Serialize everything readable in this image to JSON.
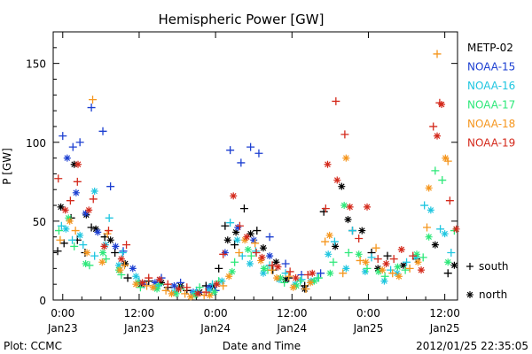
{
  "chart_data": {
    "type": "scatter",
    "title": "Hemispheric Power [GW]",
    "xlabel": "Date and Time",
    "ylabel": "P [GW]",
    "xlim_hours": [
      -1.5,
      62
    ],
    "ylim": [
      0,
      170
    ],
    "yticks": [
      0,
      50,
      100,
      150
    ],
    "xticks": [
      {
        "t": 0,
        "label_time": "0:00",
        "label_date": "Jan23"
      },
      {
        "t": 12,
        "label_time": "12:00",
        "label_date": "Jan23"
      },
      {
        "t": 24,
        "label_time": "0:00",
        "label_date": "Jan24"
      },
      {
        "t": 36,
        "label_time": "12:00",
        "label_date": "Jan24"
      },
      {
        "t": 48,
        "label_time": "0:00",
        "label_date": "Jan25"
      },
      {
        "t": 60,
        "label_time": "12:00",
        "label_date": "Jan25"
      }
    ],
    "grid": false,
    "legend_position": "right",
    "marker_legend": [
      {
        "symbol": "+",
        "label": "south"
      },
      {
        "symbol": "*",
        "label": "north"
      }
    ],
    "series": [
      {
        "name": "METP-02",
        "color": "#000000",
        "south": [
          [
            -0.8,
            31
          ],
          [
            0.2,
            36
          ],
          [
            1.3,
            52
          ],
          [
            2.3,
            38
          ],
          [
            3.5,
            30
          ],
          [
            4.5,
            46
          ],
          [
            6.6,
            40
          ],
          [
            8.2,
            30
          ],
          [
            10.2,
            14
          ],
          [
            13.5,
            12
          ],
          [
            16.5,
            8
          ],
          [
            19.5,
            6
          ],
          [
            22.5,
            9
          ],
          [
            24.5,
            20
          ],
          [
            25.5,
            47
          ],
          [
            27,
            35
          ],
          [
            28.5,
            58
          ],
          [
            30.5,
            44
          ],
          [
            33,
            19
          ],
          [
            35.5,
            14
          ],
          [
            38,
            9
          ],
          [
            41,
            56
          ],
          [
            45.5,
            44
          ],
          [
            48.5,
            30
          ],
          [
            51,
            28
          ],
          [
            55.5,
            26
          ],
          [
            60.5,
            17
          ]
        ],
        "north": [
          [
            -0.3,
            59
          ],
          [
            1.8,
            86
          ],
          [
            3.7,
            54
          ],
          [
            5.2,
            45
          ],
          [
            7.5,
            38
          ],
          [
            9.8,
            23
          ],
          [
            12.3,
            10
          ],
          [
            15.5,
            11
          ],
          [
            18.5,
            9
          ],
          [
            21.5,
            5
          ],
          [
            23.5,
            9
          ],
          [
            25.9,
            38
          ],
          [
            27.2,
            43
          ],
          [
            29.5,
            42
          ],
          [
            31.5,
            33
          ],
          [
            33.5,
            24
          ],
          [
            35,
            13
          ],
          [
            38,
            7
          ],
          [
            42.8,
            34
          ],
          [
            43.8,
            72
          ],
          [
            44.8,
            51
          ],
          [
            47,
            44
          ],
          [
            49.5,
            20
          ],
          [
            53.5,
            22
          ],
          [
            58.5,
            35
          ],
          [
            61.5,
            22
          ]
        ]
      },
      {
        "name": "NOAA-15",
        "color": "#1c3fd1",
        "south": [
          [
            0,
            104
          ],
          [
            1.6,
            97
          ],
          [
            2.7,
            100
          ],
          [
            4.5,
            122
          ],
          [
            6.3,
            107
          ],
          [
            7.5,
            72
          ],
          [
            9.5,
            31
          ],
          [
            12.8,
            10
          ],
          [
            15.5,
            14
          ],
          [
            18.5,
            11
          ],
          [
            21.5,
            5
          ],
          [
            24,
            6
          ],
          [
            26.3,
            95
          ],
          [
            28,
            87
          ],
          [
            29.5,
            97
          ],
          [
            30.8,
            93
          ],
          [
            32.5,
            40
          ],
          [
            35,
            23
          ],
          [
            37.5,
            16
          ],
          [
            40.5,
            17
          ]
        ],
        "north": [
          [
            0.7,
            90
          ],
          [
            2.1,
            68
          ],
          [
            3.6,
            55
          ],
          [
            5.5,
            43
          ],
          [
            8.3,
            34
          ],
          [
            11,
            20
          ],
          [
            14.5,
            11
          ],
          [
            17.5,
            9
          ],
          [
            20.5,
            5
          ],
          [
            23,
            8
          ],
          [
            25.5,
            30
          ],
          [
            27.5,
            46
          ],
          [
            30,
            38
          ],
          [
            32.5,
            28
          ]
        ]
      },
      {
        "name": "NOAA-16",
        "color": "#1fc6e0",
        "south": [
          [
            -0.2,
            47
          ],
          [
            1.5,
            38
          ],
          [
            3.2,
            35
          ],
          [
            5,
            28
          ],
          [
            7.3,
            52
          ],
          [
            9.4,
            30
          ],
          [
            12,
            12
          ],
          [
            15,
            9
          ],
          [
            18,
            7
          ],
          [
            21,
            6
          ],
          [
            23.5,
            10
          ],
          [
            26.3,
            49
          ],
          [
            28.2,
            28
          ],
          [
            30.3,
            31
          ],
          [
            32.5,
            22
          ],
          [
            35,
            17
          ],
          [
            37.5,
            13
          ],
          [
            40,
            14
          ],
          [
            42.7,
            37
          ],
          [
            45.5,
            44
          ],
          [
            48.5,
            27
          ],
          [
            51.5,
            19
          ],
          [
            54,
            24
          ],
          [
            56.8,
            60
          ],
          [
            59.3,
            45
          ],
          [
            61,
            30
          ]
        ],
        "north": [
          [
            0.5,
            45
          ],
          [
            2.7,
            41
          ],
          [
            5,
            69
          ],
          [
            6.7,
            35
          ],
          [
            8.8,
            22
          ],
          [
            11.5,
            15
          ],
          [
            14.5,
            8
          ],
          [
            17.5,
            5
          ],
          [
            20.5,
            4
          ],
          [
            23,
            6
          ],
          [
            25,
            12
          ],
          [
            27.4,
            38
          ],
          [
            29.4,
            23
          ],
          [
            31.5,
            17
          ],
          [
            34,
            13
          ],
          [
            36.5,
            10
          ],
          [
            39,
            12
          ],
          [
            41.7,
            29
          ],
          [
            44.5,
            20
          ],
          [
            47.5,
            18
          ],
          [
            50.5,
            12
          ],
          [
            52.5,
            17
          ],
          [
            55.5,
            27
          ],
          [
            57.8,
            57
          ],
          [
            60,
            42
          ],
          [
            62.5,
            22
          ],
          [
            64.5,
            14
          ],
          [
            66.5,
            12
          ],
          [
            68.5,
            8
          ]
        ]
      },
      {
        "name": "NOAA-17",
        "color": "#2ee87a",
        "south": [
          [
            -0.6,
            44
          ],
          [
            1.8,
            34
          ],
          [
            4.2,
            22
          ],
          [
            6.8,
            26
          ],
          [
            9.2,
            16
          ],
          [
            12.2,
            8
          ],
          [
            15.2,
            10
          ],
          [
            18.5,
            7
          ],
          [
            21.5,
            8
          ],
          [
            24.5,
            12
          ],
          [
            27,
            24
          ],
          [
            29.6,
            28
          ],
          [
            32.2,
            19
          ],
          [
            34.8,
            11
          ],
          [
            37.3,
            12
          ],
          [
            40.2,
            14
          ],
          [
            42.5,
            24
          ],
          [
            44.9,
            30
          ],
          [
            47.8,
            20
          ],
          [
            50.6,
            15
          ],
          [
            53.8,
            19
          ],
          [
            56.6,
            27
          ],
          [
            58.5,
            82
          ],
          [
            59.6,
            76
          ],
          [
            61.5,
            44
          ],
          [
            64,
            26
          ],
          [
            66.8,
            18
          ],
          [
            69,
            13
          ]
        ],
        "north": [
          [
            0.9,
            52
          ],
          [
            3.6,
            23
          ],
          [
            6.3,
            30
          ],
          [
            8.8,
            19
          ],
          [
            11.8,
            11
          ],
          [
            14.8,
            7
          ],
          [
            17.8,
            4
          ],
          [
            20.8,
            3
          ],
          [
            23.8,
            5
          ],
          [
            26.6,
            18
          ],
          [
            29.1,
            32
          ],
          [
            31.6,
            20
          ],
          [
            34.2,
            14
          ],
          [
            36.7,
            9
          ],
          [
            39.5,
            12
          ],
          [
            42,
            17
          ],
          [
            44.2,
            60
          ],
          [
            46.5,
            29
          ],
          [
            49.6,
            18
          ],
          [
            52.6,
            21
          ],
          [
            55.6,
            29
          ],
          [
            57.5,
            40
          ],
          [
            60.5,
            24
          ],
          [
            63.5,
            16
          ],
          [
            66,
            13
          ],
          [
            68.5,
            9
          ]
        ]
      },
      {
        "name": "NOAA-18",
        "color": "#f5961e",
        "south": [
          [
            -0.4,
            38
          ],
          [
            2,
            44
          ],
          [
            4.7,
            127
          ],
          [
            7,
            42
          ],
          [
            9.7,
            22
          ],
          [
            13.2,
            9
          ],
          [
            16.2,
            6
          ],
          [
            19.2,
            4
          ],
          [
            22.2,
            3
          ],
          [
            25.2,
            9
          ],
          [
            27.7,
            30
          ],
          [
            30.2,
            36
          ],
          [
            32.8,
            19
          ],
          [
            35.5,
            15
          ],
          [
            38.2,
            7
          ],
          [
            41.2,
            37
          ],
          [
            44,
            17
          ],
          [
            46.7,
            25
          ],
          [
            49.2,
            33
          ],
          [
            51.8,
            17
          ],
          [
            54.5,
            20
          ],
          [
            57.2,
            46
          ],
          [
            58.8,
            156
          ],
          [
            60.5,
            88
          ],
          [
            62.2,
            26
          ],
          [
            65.3,
            16
          ],
          [
            68,
            13
          ]
        ],
        "north": [
          [
            1.1,
            50
          ],
          [
            3.8,
            30
          ],
          [
            6.2,
            24
          ],
          [
            9,
            19
          ],
          [
            11.5,
            10
          ],
          [
            14.2,
            8
          ],
          [
            17.1,
            4
          ],
          [
            20.1,
            2
          ],
          [
            23.1,
            3
          ],
          [
            26.1,
            15
          ],
          [
            28.6,
            38
          ],
          [
            31.1,
            25
          ],
          [
            33.6,
            14
          ],
          [
            36.2,
            8
          ],
          [
            38.9,
            11
          ],
          [
            41.9,
            41
          ],
          [
            44.5,
            90
          ],
          [
            47.6,
            24
          ],
          [
            50.2,
            19
          ],
          [
            52.8,
            15
          ],
          [
            55.8,
            24
          ],
          [
            57.5,
            71
          ],
          [
            60.1,
            90
          ],
          [
            62.7,
            21
          ],
          [
            65.9,
            14
          ],
          [
            68.8,
            9
          ]
        ]
      },
      {
        "name": "NOAA-19",
        "color": "#d42a1c",
        "south": [
          [
            -0.7,
            77
          ],
          [
            1.2,
            63
          ],
          [
            2.3,
            75
          ],
          [
            4.8,
            64
          ],
          [
            7.2,
            44
          ],
          [
            10,
            35
          ],
          [
            13.5,
            14
          ],
          [
            16.5,
            10
          ],
          [
            19.5,
            8
          ],
          [
            22.5,
            5
          ],
          [
            25.2,
            29
          ],
          [
            27.8,
            47
          ],
          [
            30.4,
            30
          ],
          [
            32.9,
            22
          ],
          [
            35.7,
            18
          ],
          [
            38.5,
            16
          ],
          [
            41.3,
            58
          ],
          [
            42.9,
            126
          ],
          [
            44.3,
            105
          ],
          [
            46.5,
            39
          ],
          [
            49.5,
            26
          ],
          [
            52,
            26
          ],
          [
            55,
            28
          ],
          [
            58.2,
            110
          ],
          [
            59.2,
            125
          ],
          [
            60.8,
            63
          ],
          [
            62.6,
            27
          ],
          [
            65.5,
            16
          ],
          [
            68.2,
            11
          ]
        ],
        "north": [
          [
            0.4,
            57
          ],
          [
            2.4,
            86
          ],
          [
            4.1,
            57
          ],
          [
            6.5,
            34
          ],
          [
            9.2,
            26
          ],
          [
            12.5,
            11
          ],
          [
            15.2,
            13
          ],
          [
            18.2,
            7
          ],
          [
            21.2,
            4
          ],
          [
            24.2,
            10
          ],
          [
            26.8,
            66
          ],
          [
            28.9,
            40
          ],
          [
            31.3,
            27
          ],
          [
            33.8,
            21
          ],
          [
            36.6,
            14
          ],
          [
            39.2,
            17
          ],
          [
            41.6,
            86
          ],
          [
            43.1,
            76
          ],
          [
            45.1,
            59
          ],
          [
            47.8,
            59
          ],
          [
            50.8,
            23
          ],
          [
            53.2,
            32
          ],
          [
            56.3,
            19
          ],
          [
            58.8,
            104
          ],
          [
            59.5,
            124
          ],
          [
            61.8,
            45
          ],
          [
            64.5,
            23
          ],
          [
            67.2,
            15
          ],
          [
            69,
            10
          ]
        ]
      }
    ]
  },
  "footer": {
    "plot_source": "Plot: CCMC",
    "timestamp": "2012/01/25 22:35:05"
  }
}
